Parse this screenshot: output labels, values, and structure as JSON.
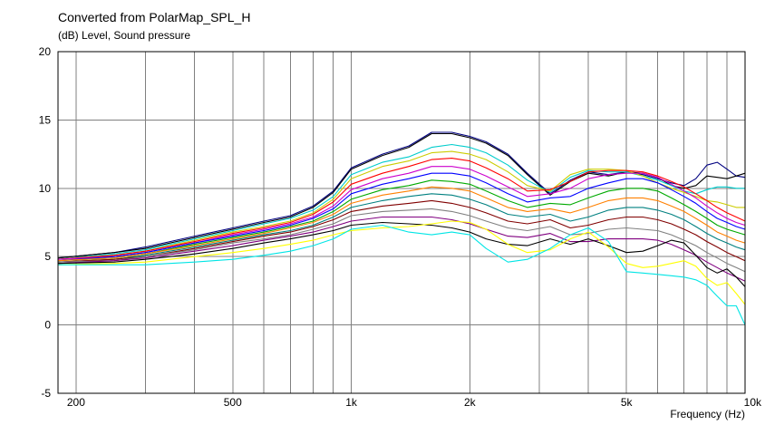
{
  "chart_data": {
    "type": "line",
    "title": "Converted from PolarMap_SPL_H",
    "ylabel": "(dB)  Level, Sound pressure",
    "xlabel": "Frequency  (Hz)",
    "xscale": "log",
    "xlim": [
      180,
      10000
    ],
    "ylim": [
      -5,
      20
    ],
    "grid": true,
    "xticks": [
      {
        "v": 200,
        "label": "200"
      },
      {
        "v": 500,
        "label": "500"
      },
      {
        "v": 1000,
        "label": "1k"
      },
      {
        "v": 2000,
        "label": "2k"
      },
      {
        "v": 5000,
        "label": "5k"
      },
      {
        "v": 10000,
        "label": "10k"
      }
    ],
    "yticks": [
      {
        "v": 20,
        "label": "20"
      },
      {
        "v": 15,
        "label": "15"
      },
      {
        "v": 10,
        "label": "10"
      },
      {
        "v": 5,
        "label": "5"
      },
      {
        "v": 0,
        "label": "0"
      },
      {
        "v": -5,
        "label": "-5"
      }
    ],
    "x": [
      180,
      250,
      300,
      400,
      500,
      600,
      700,
      800,
      900,
      1000,
      1200,
      1400,
      1600,
      1800,
      2000,
      2200,
      2500,
      2800,
      3200,
      3600,
      4000,
      4500,
      5000,
      5500,
      6000,
      6500,
      7000,
      7500,
      8000,
      8500,
      9000,
      9500,
      10000
    ],
    "series": [
      {
        "color": "#000080",
        "values": [
          4.9,
          5.3,
          5.7,
          6.5,
          7.1,
          7.6,
          8.0,
          8.7,
          9.8,
          11.5,
          12.5,
          13.1,
          14.1,
          14.1,
          13.8,
          13.4,
          12.5,
          11.1,
          9.6,
          10.6,
          11.2,
          11.0,
          11.2,
          11.0,
          10.7,
          10.4,
          10.2,
          10.7,
          11.7,
          11.9,
          11.4,
          10.9,
          10.8
        ]
      },
      {
        "color": "#000000",
        "values": [
          4.9,
          5.3,
          5.6,
          6.4,
          7.0,
          7.5,
          7.9,
          8.6,
          9.7,
          11.4,
          12.4,
          13.0,
          14.0,
          14.0,
          13.7,
          13.3,
          12.4,
          11.0,
          9.5,
          10.5,
          11.1,
          10.9,
          11.2,
          11.1,
          10.8,
          10.2,
          10.0,
          10.2,
          10.9,
          10.8,
          10.7,
          10.9,
          11.1
        ]
      },
      {
        "color": "#00cccc",
        "values": [
          4.8,
          5.2,
          5.5,
          6.3,
          6.9,
          7.4,
          7.8,
          8.4,
          9.4,
          11.0,
          11.9,
          12.3,
          13.0,
          13.2,
          13.0,
          12.6,
          11.7,
          10.6,
          9.7,
          10.8,
          11.3,
          11.2,
          11.2,
          10.9,
          10.6,
          10.2,
          9.8,
          9.6,
          9.9,
          10.1,
          10.1,
          10.0,
          10.0
        ]
      },
      {
        "color": "#cccc00",
        "values": [
          4.8,
          5.1,
          5.4,
          6.2,
          6.8,
          7.2,
          7.6,
          8.2,
          9.2,
          10.7,
          11.6,
          12.0,
          12.6,
          12.7,
          12.5,
          12.1,
          11.2,
          10.2,
          9.8,
          11.0,
          11.4,
          11.4,
          11.3,
          10.9,
          10.4,
          10.0,
          9.7,
          9.4,
          9.1,
          9.0,
          8.8,
          8.6,
          8.6
        ]
      },
      {
        "color": "#ff0000",
        "values": [
          4.8,
          5.1,
          5.4,
          6.1,
          6.7,
          7.1,
          7.5,
          8.1,
          9.0,
          10.3,
          11.1,
          11.6,
          12.1,
          12.2,
          12.0,
          11.5,
          10.7,
          9.8,
          9.9,
          10.5,
          11.2,
          11.3,
          11.3,
          11.2,
          10.9,
          10.5,
          10.1,
          9.6,
          9.1,
          8.6,
          8.2,
          7.9,
          7.6
        ]
      },
      {
        "color": "#cc00cc",
        "values": [
          4.8,
          5.0,
          5.3,
          6.0,
          6.6,
          7.0,
          7.4,
          7.9,
          8.7,
          9.9,
          10.7,
          11.1,
          11.6,
          11.6,
          11.4,
          10.9,
          10.1,
          9.4,
          9.6,
          10.0,
          10.7,
          11.0,
          11.1,
          11.1,
          10.8,
          10.3,
          9.8,
          9.3,
          8.7,
          8.2,
          7.8,
          7.5,
          7.3
        ]
      },
      {
        "color": "#0000ff",
        "values": [
          4.7,
          5.0,
          5.3,
          6.0,
          6.5,
          6.9,
          7.3,
          7.8,
          8.5,
          9.6,
          10.3,
          10.7,
          11.1,
          11.1,
          10.9,
          10.4,
          9.6,
          9.0,
          9.3,
          9.4,
          10.0,
          10.4,
          10.7,
          10.7,
          10.4,
          9.9,
          9.4,
          8.9,
          8.3,
          7.8,
          7.5,
          7.2,
          7.0
        ]
      },
      {
        "color": "#00aa00",
        "values": [
          4.7,
          4.9,
          5.2,
          5.9,
          6.4,
          6.8,
          7.2,
          7.6,
          8.3,
          9.2,
          9.9,
          10.2,
          10.6,
          10.5,
          10.3,
          9.8,
          9.1,
          8.6,
          8.9,
          8.8,
          9.3,
          9.8,
          10.0,
          10.0,
          9.8,
          9.3,
          8.8,
          8.3,
          7.8,
          7.3,
          7.0,
          6.8,
          6.6
        ]
      },
      {
        "color": "#ff8000",
        "values": [
          4.7,
          4.9,
          5.2,
          5.8,
          6.3,
          6.7,
          7.1,
          7.5,
          8.1,
          8.9,
          9.5,
          9.8,
          10.1,
          10.0,
          9.8,
          9.3,
          8.6,
          8.3,
          8.5,
          8.2,
          8.6,
          9.1,
          9.3,
          9.3,
          9.1,
          8.7,
          8.3,
          7.8,
          7.3,
          6.8,
          6.5,
          6.2,
          6.0
        ]
      },
      {
        "color": "#008080",
        "values": [
          4.6,
          4.8,
          5.1,
          5.7,
          6.2,
          6.6,
          6.9,
          7.3,
          7.9,
          8.6,
          9.1,
          9.4,
          9.6,
          9.5,
          9.2,
          8.8,
          8.1,
          7.9,
          8.1,
          7.6,
          7.9,
          8.4,
          8.6,
          8.6,
          8.4,
          8.1,
          7.7,
          7.2,
          6.7,
          6.3,
          6.0,
          5.7,
          5.5
        ]
      },
      {
        "color": "#800000",
        "values": [
          4.6,
          4.8,
          5.0,
          5.6,
          6.1,
          6.5,
          6.8,
          7.2,
          7.7,
          8.3,
          8.7,
          8.9,
          9.1,
          8.9,
          8.6,
          8.2,
          7.6,
          7.4,
          7.7,
          7.1,
          7.3,
          7.7,
          7.9,
          7.9,
          7.7,
          7.4,
          7.0,
          6.6,
          6.1,
          5.7,
          5.3,
          5.0,
          4.7
        ]
      },
      {
        "color": "#808080",
        "values": [
          4.6,
          4.7,
          5.0,
          5.5,
          6.0,
          6.3,
          6.6,
          7.0,
          7.4,
          8.0,
          8.3,
          8.4,
          8.5,
          8.3,
          8.0,
          7.6,
          7.1,
          6.9,
          7.2,
          6.6,
          6.7,
          7.0,
          7.1,
          7.0,
          6.9,
          6.6,
          6.2,
          5.8,
          5.3,
          4.9,
          4.5,
          4.2,
          3.9
        ]
      },
      {
        "color": "#800080",
        "values": [
          4.5,
          4.7,
          4.9,
          5.4,
          5.8,
          6.2,
          6.5,
          6.8,
          7.2,
          7.6,
          7.9,
          7.9,
          7.9,
          7.7,
          7.4,
          7.0,
          6.5,
          6.4,
          6.7,
          6.1,
          6.1,
          6.3,
          6.3,
          6.3,
          6.2,
          5.9,
          5.5,
          5.1,
          4.6,
          4.2,
          3.8,
          3.5,
          3.2
        ]
      },
      {
        "color": "#000000",
        "values": [
          4.5,
          4.6,
          4.8,
          5.2,
          5.6,
          6.0,
          6.3,
          6.6,
          6.9,
          7.3,
          7.5,
          7.4,
          7.3,
          7.1,
          6.8,
          6.3,
          5.9,
          5.8,
          6.3,
          5.9,
          6.3,
          5.8,
          5.3,
          5.4,
          5.8,
          6.2,
          6.0,
          5.1,
          4.2,
          3.8,
          4.1,
          3.5,
          2.8
        ]
      },
      {
        "color": "#ffff00",
        "values": [
          4.4,
          4.5,
          4.6,
          5.0,
          5.3,
          5.6,
          5.9,
          6.2,
          6.6,
          6.9,
          7.1,
          7.2,
          7.4,
          7.6,
          7.5,
          7.0,
          5.9,
          5.3,
          5.5,
          6.3,
          6.8,
          5.7,
          4.5,
          4.2,
          4.3,
          4.5,
          4.7,
          4.3,
          3.4,
          2.9,
          3.1,
          2.3,
          1.5
        ]
      },
      {
        "color": "#00e5e5",
        "values": [
          4.4,
          4.4,
          4.4,
          4.6,
          4.8,
          5.1,
          5.4,
          5.8,
          6.3,
          7.0,
          7.3,
          6.8,
          6.6,
          6.8,
          6.6,
          5.6,
          4.6,
          4.8,
          5.6,
          6.6,
          7.1,
          6.1,
          3.9,
          3.8,
          3.7,
          3.6,
          3.5,
          3.3,
          2.9,
          2.1,
          1.4,
          1.4,
          0.0
        ]
      }
    ]
  }
}
